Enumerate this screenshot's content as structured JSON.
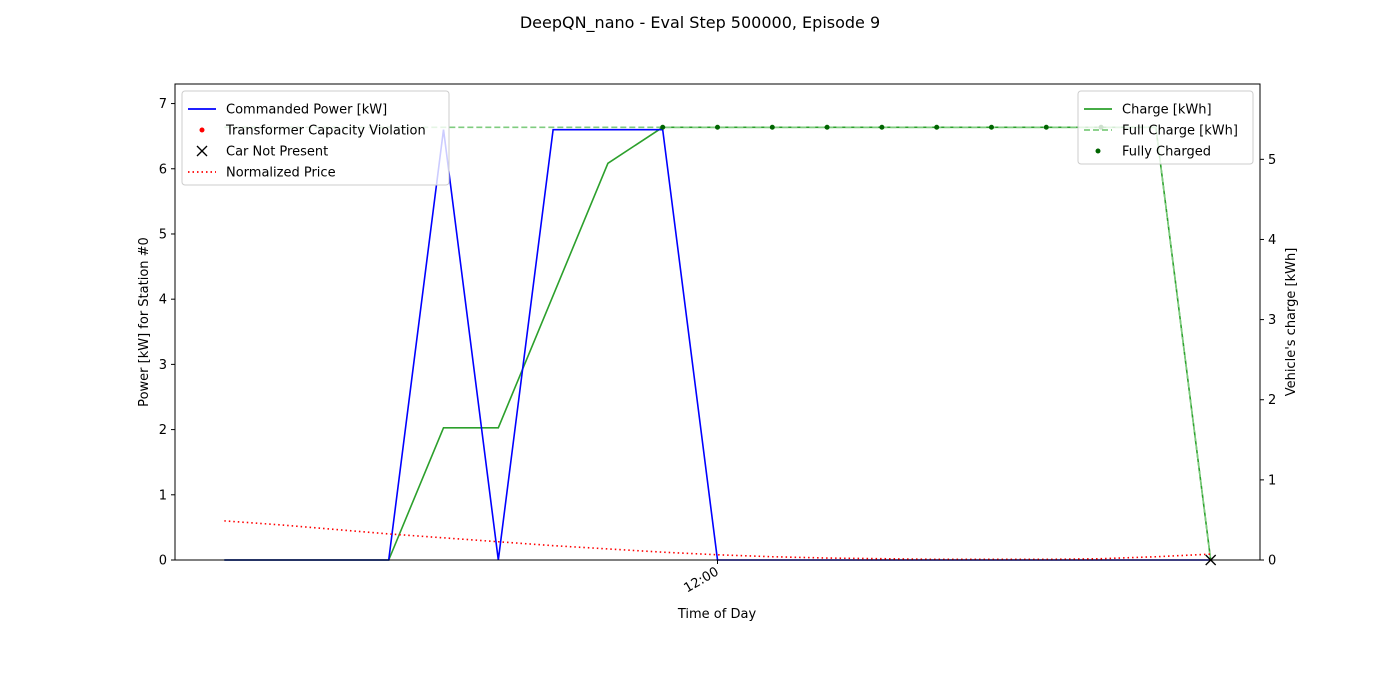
{
  "chart_data": {
    "type": "line",
    "title": "DeepQN_nano - Eval Step 500000, Episode 9",
    "xlabel": "Time of Day",
    "ylabel_left": "Power [kW] for Station #0",
    "ylabel_right": "Vehicle's charge [kWh]",
    "x_ticks": [
      {
        "x": 9,
        "label": "12:00"
      }
    ],
    "xlim": [
      -0.9,
      18.9
    ],
    "ylim_left": [
      0,
      7.3
    ],
    "ylim_right": [
      0,
      5.94
    ],
    "yticks_left": [
      0,
      1,
      2,
      3,
      4,
      5,
      6,
      7
    ],
    "yticks_right": [
      0,
      1,
      2,
      3,
      4,
      5
    ],
    "x": [
      0,
      1,
      2,
      3,
      4,
      5,
      6,
      7,
      8,
      9,
      10,
      11,
      12,
      13,
      14,
      15,
      16,
      17,
      18
    ],
    "series_left": [
      {
        "name": "Commanded Power [kW]",
        "color": "#0000ff",
        "style": "solid",
        "values": [
          0,
          0,
          0,
          0,
          6.6,
          0,
          6.6,
          6.6,
          6.6,
          0,
          0,
          0,
          0,
          0,
          0,
          0,
          0,
          0,
          0
        ]
      },
      {
        "name": "Normalized Price",
        "color": "#ff0000",
        "style": "dotted",
        "values": [
          0.6,
          0.54,
          0.47,
          0.4,
          0.34,
          0.28,
          0.22,
          0.17,
          0.12,
          0.08,
          0.05,
          0.03,
          0.02,
          0.01,
          0.01,
          0.01,
          0.02,
          0.05,
          0.09
        ]
      }
    ],
    "series_right": [
      {
        "name": "Charge [kWh]",
        "color": "#2ca02c",
        "style": "solid",
        "values": [
          0,
          0,
          0,
          0,
          1.65,
          1.65,
          3.3,
          4.95,
          5.4,
          5.4,
          5.4,
          5.4,
          5.4,
          5.4,
          5.4,
          5.4,
          5.4,
          5.4,
          0
        ]
      },
      {
        "name": "Full Charge [kWh]",
        "color": "#7fcc7f",
        "style": "dashed",
        "values": [
          5.4,
          5.4,
          5.4,
          5.4,
          5.4,
          5.4,
          5.4,
          5.4,
          5.4,
          5.4,
          5.4,
          5.4,
          5.4,
          5.4,
          5.4,
          5.4,
          5.4,
          5.4,
          0
        ]
      }
    ],
    "markers": [
      {
        "name": "Transformer Capacity Violation",
        "color": "#ff0000",
        "shape": "dot",
        "axis": "left",
        "points": []
      },
      {
        "name": "Car Not Present",
        "color": "#000000",
        "shape": "x",
        "axis": "right",
        "points": [
          [
            18,
            0
          ]
        ]
      },
      {
        "name": "Fully Charged",
        "color": "#006400",
        "shape": "dot",
        "axis": "right",
        "points": [
          [
            8,
            5.4
          ],
          [
            9,
            5.4
          ],
          [
            10,
            5.4
          ],
          [
            11,
            5.4
          ],
          [
            12,
            5.4
          ],
          [
            13,
            5.4
          ],
          [
            14,
            5.4
          ],
          [
            15,
            5.4
          ],
          [
            16,
            5.4
          ]
        ]
      }
    ],
    "legend_left": [
      "Commanded Power [kW]",
      "Transformer Capacity Violation",
      "Car Not Present",
      "Normalized Price"
    ],
    "legend_right": [
      "Charge [kWh]",
      "Full Charge [kWh]",
      "Fully Charged"
    ],
    "legend_left_placement": "upper-left",
    "legend_right_placement": "upper-right",
    "grid": false
  }
}
